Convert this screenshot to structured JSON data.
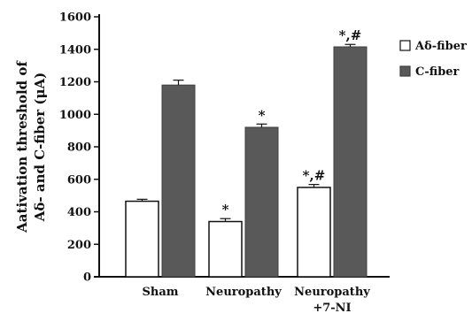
{
  "chart_data": {
    "type": "bar",
    "categories": [
      "Sham",
      "Neuropathy",
      "Neuropathy\n+7-NI"
    ],
    "series": [
      {
        "name": "Aδ-fiber",
        "values": [
          465,
          340,
          550
        ],
        "errors": [
          12,
          18,
          18
        ],
        "color": "#ffffff",
        "annotations": [
          "",
          "*",
          "*,#"
        ]
      },
      {
        "name": "C-fiber",
        "values": [
          1180,
          920,
          1415
        ],
        "errors": [
          30,
          20,
          15
        ],
        "color": "#595959",
        "annotations": [
          "",
          "*",
          "*,#"
        ]
      }
    ],
    "ylabel_lines": [
      "Aativation threshold of",
      "Aδ- and C-fiber (μA)"
    ],
    "ylim": [
      0,
      1600
    ],
    "yticks": [
      0,
      200,
      400,
      600,
      800,
      1000,
      1200,
      1400,
      1600
    ],
    "grid": false,
    "legend_position": "right"
  }
}
